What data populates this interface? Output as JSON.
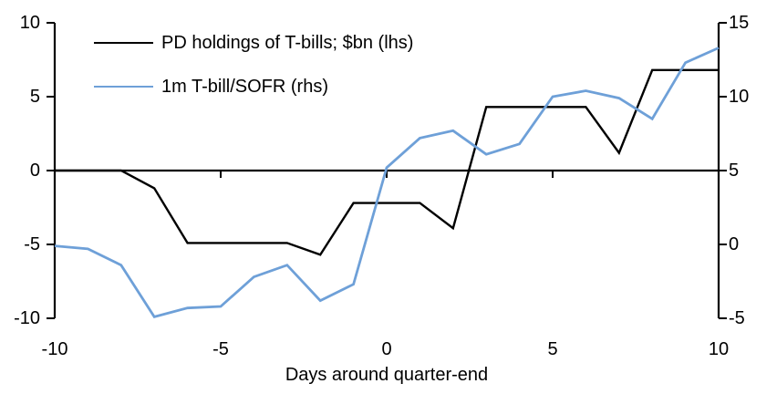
{
  "chart_data": {
    "type": "line",
    "title": "",
    "xlabel": "Days around quarter-end",
    "x": [
      -10,
      -9,
      -8,
      -7,
      -6,
      -5,
      -4,
      -3,
      -2,
      -1,
      0,
      1,
      2,
      3,
      4,
      5,
      6,
      7,
      8,
      9,
      10
    ],
    "series": [
      {
        "name": "PD holdings of T-bills; $bn (lhs)",
        "axis": "left",
        "color": "#000000",
        "values": [
          0,
          0,
          0,
          -1.2,
          -4.9,
          -4.9,
          -4.9,
          -4.9,
          -5.7,
          -2.2,
          -2.2,
          -2.2,
          -3.9,
          4.3,
          4.3,
          4.3,
          4.3,
          1.2,
          6.8,
          6.8,
          6.8
        ]
      },
      {
        "name": "1m T-bill/SOFR (rhs)",
        "axis": "right",
        "color": "#6EA0D8",
        "values": [
          -0.1,
          -0.3,
          -1.4,
          -4.9,
          -4.3,
          -4.2,
          -2.2,
          -1.4,
          -3.8,
          -2.7,
          5.2,
          7.2,
          7.7,
          6.1,
          6.8,
          10.0,
          10.4,
          9.9,
          8.5,
          12.3,
          13.3
        ]
      }
    ],
    "axes": {
      "x": {
        "range": [
          -10,
          10
        ],
        "ticks": [
          -10,
          -5,
          0,
          5,
          10
        ]
      },
      "left": {
        "range": [
          -10,
          10
        ],
        "ticks": [
          10,
          5,
          0,
          -5,
          -10
        ]
      },
      "right": {
        "range": [
          -5,
          15
        ],
        "ticks": [
          15,
          10,
          5,
          0,
          -5
        ]
      }
    },
    "grid": false,
    "zero_line": true,
    "legend_position": "top-left",
    "axis_color": "#000000"
  }
}
